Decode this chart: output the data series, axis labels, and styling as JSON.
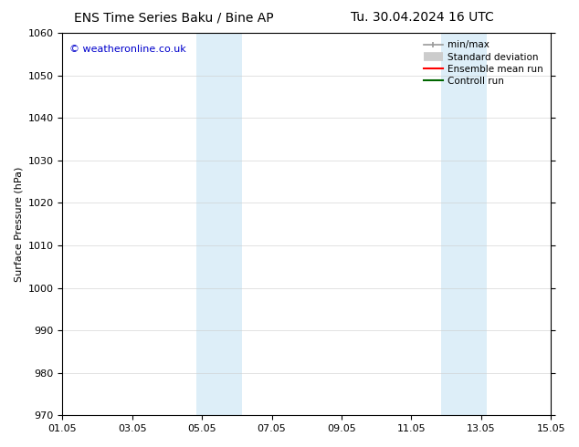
{
  "title_left": "ENS Time Series Baku / Bine AP",
  "title_right": "Tu. 30.04.2024 16 UTC",
  "ylabel": "Surface Pressure (hPa)",
  "ylim": [
    970,
    1060
  ],
  "yticks": [
    970,
    980,
    990,
    1000,
    1010,
    1020,
    1030,
    1040,
    1050,
    1060
  ],
  "xlim_start": 0,
  "xlim_end": 14,
  "xtick_labels": [
    "01.05",
    "03.05",
    "05.05",
    "07.05",
    "09.05",
    "11.05",
    "13.05",
    "15.05"
  ],
  "xtick_positions": [
    0,
    2,
    4,
    6,
    8,
    10,
    12,
    14
  ],
  "shaded_bands": [
    {
      "x_start": 3.85,
      "x_end": 5.15,
      "color": "#ddeef8"
    },
    {
      "x_start": 10.85,
      "x_end": 12.15,
      "color": "#ddeef8"
    }
  ],
  "watermark": "© weatheronline.co.uk",
  "watermark_color": "#0000cc",
  "watermark_fontsize": 8,
  "legend_entries": [
    {
      "label": "min/max",
      "color": "#999999",
      "lw": 1.2,
      "style": "caps"
    },
    {
      "label": "Standard deviation",
      "color": "#cccccc",
      "lw": 7,
      "style": "thick"
    },
    {
      "label": "Ensemble mean run",
      "color": "#ff0000",
      "lw": 1.5,
      "style": "line"
    },
    {
      "label": "Controll run",
      "color": "#006600",
      "lw": 1.5,
      "style": "line"
    }
  ],
  "bg_color": "#ffffff",
  "plot_bg_color": "#ffffff",
  "title_fontsize": 10,
  "label_fontsize": 8,
  "tick_fontsize": 8,
  "legend_fontsize": 7.5
}
